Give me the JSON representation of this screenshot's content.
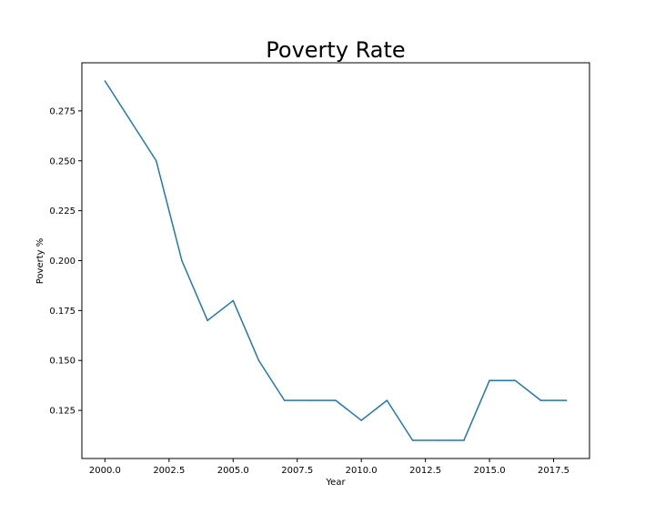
{
  "chart_data": {
    "type": "line",
    "title": "Poverty Rate",
    "xlabel": "Year",
    "ylabel": "Poverty %",
    "xlim": [
      1999.1,
      2018.9
    ],
    "ylim": [
      0.1009,
      0.2991
    ],
    "xticks": [
      2000.0,
      2002.5,
      2005.0,
      2007.5,
      2010.0,
      2012.5,
      2015.0,
      2017.5
    ],
    "xtick_labels": [
      "2000.0",
      "2002.5",
      "2005.0",
      "2007.5",
      "2010.0",
      "2012.5",
      "2015.0",
      "2017.5"
    ],
    "yticks": [
      0.125,
      0.15,
      0.175,
      0.2,
      0.225,
      0.25,
      0.275
    ],
    "ytick_labels": [
      "0.125",
      "0.150",
      "0.175",
      "0.200",
      "0.225",
      "0.250",
      "0.275"
    ],
    "grid": false,
    "line_color": "#1f77b4",
    "series": [
      {
        "x": [
          2000,
          2001,
          2002,
          2003,
          2004,
          2005,
          2006,
          2007,
          2008,
          2009,
          2010,
          2011,
          2012,
          2013,
          2014,
          2015,
          2016,
          2017,
          2018
        ],
        "values": [
          0.29,
          0.27,
          0.25,
          0.2,
          0.17,
          0.18,
          0.15,
          0.13,
          0.13,
          0.13,
          0.12,
          0.13,
          0.11,
          0.11,
          0.11,
          0.14,
          0.14,
          0.13,
          0.13
        ]
      }
    ]
  }
}
